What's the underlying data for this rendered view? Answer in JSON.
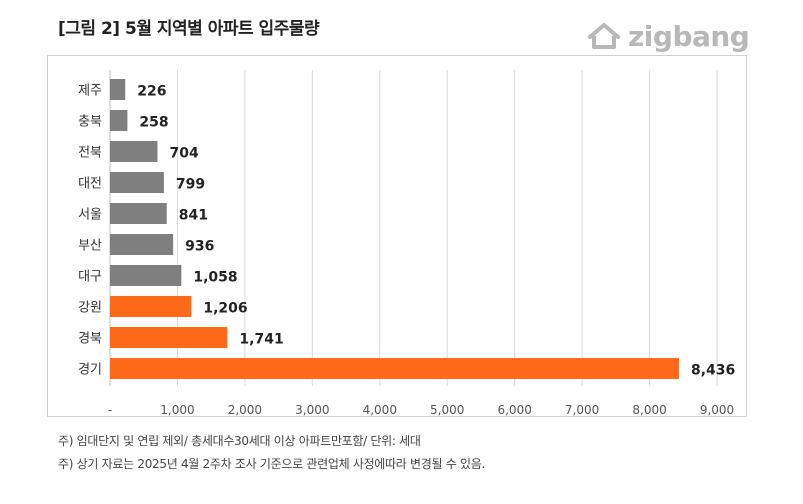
{
  "header": {
    "title": "[그림 2] 5월 지역별 아파트 입주물량",
    "brand": "zigbang",
    "brand_icon": "zigbang-house-logo-icon"
  },
  "footnotes": [
    "주) 임대단지 및 연립 제외/ 총세대수30세대 이상 아파트만포함/ 단위: 세대",
    "주) 상기 자료는 2025년 4월 2주차 조사 기준으로 관련업체 사정에따라 변경될 수 있음."
  ],
  "colors": {
    "gray": "#7f7f7f",
    "orange": "#ff6a1a",
    "grid": "#d9d9d9"
  },
  "chart_data": {
    "type": "bar",
    "orientation": "horizontal",
    "categories": [
      "제주",
      "충북",
      "전북",
      "대전",
      "서울",
      "부산",
      "대구",
      "강원",
      "경북",
      "경기"
    ],
    "values": [
      226,
      258,
      704,
      799,
      841,
      936,
      1058,
      1206,
      1741,
      8436
    ],
    "value_labels": [
      "226",
      "258",
      "704",
      "799",
      "841",
      "936",
      "1,058",
      "1,206",
      "1,741",
      "8,436"
    ],
    "bar_colors": [
      "gray",
      "gray",
      "gray",
      "gray",
      "gray",
      "gray",
      "gray",
      "orange",
      "orange",
      "orange"
    ],
    "xlim": [
      0,
      9000
    ],
    "xticks": [
      0,
      1000,
      2000,
      3000,
      4000,
      5000,
      6000,
      7000,
      8000,
      9000
    ],
    "xtick_labels": [
      "-",
      "1,000",
      "2,000",
      "3,000",
      "4,000",
      "5,000",
      "6,000",
      "7,000",
      "8,000",
      "9,000"
    ],
    "grid": "vertical",
    "legend": "none"
  }
}
